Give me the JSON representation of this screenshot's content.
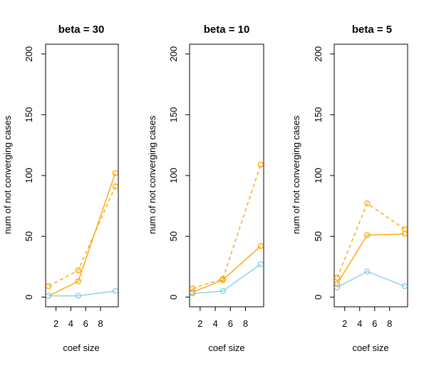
{
  "chart_data": [
    {
      "type": "line",
      "title": "beta = 30",
      "xlabel": "coef size",
      "ylabel": "num of not converging cases",
      "xlim": [
        0.6,
        10.4
      ],
      "ylim": [
        -8,
        208
      ],
      "xticks": [
        2,
        4,
        6,
        8
      ],
      "yticks": [
        0,
        50,
        100,
        150,
        200
      ],
      "x": [
        1,
        5,
        10
      ],
      "series": [
        {
          "name": "orange-solid",
          "color": "#FFA500",
          "dash": false,
          "values": [
            1,
            13,
            102
          ]
        },
        {
          "name": "orange-dashed",
          "color": "#FFA500",
          "dash": true,
          "values": [
            9,
            22,
            91
          ]
        },
        {
          "name": "skyblue-solid",
          "color": "#87CEEB",
          "dash": false,
          "values": [
            1,
            1,
            5
          ]
        }
      ]
    },
    {
      "type": "line",
      "title": "beta = 10",
      "xlabel": "coef size",
      "ylabel": "num of not converging cases",
      "xlim": [
        0.6,
        10.4
      ],
      "ylim": [
        -8,
        208
      ],
      "xticks": [
        2,
        4,
        6,
        8
      ],
      "yticks": [
        0,
        50,
        100,
        150,
        200
      ],
      "x": [
        1,
        5,
        10
      ],
      "series": [
        {
          "name": "orange-solid",
          "color": "#FFA500",
          "dash": false,
          "values": [
            4,
            14,
            42
          ]
        },
        {
          "name": "orange-dashed",
          "color": "#FFA500",
          "dash": true,
          "values": [
            7,
            15,
            109
          ]
        },
        {
          "name": "skyblue-solid",
          "color": "#87CEEB",
          "dash": false,
          "values": [
            3,
            5,
            27
          ]
        }
      ]
    },
    {
      "type": "line",
      "title": "beta = 5",
      "xlabel": "coef size",
      "ylabel": "num of not converging cases",
      "xlim": [
        0.6,
        10.4
      ],
      "ylim": [
        -8,
        208
      ],
      "xticks": [
        2,
        4,
        6,
        8
      ],
      "yticks": [
        0,
        50,
        100,
        150,
        200
      ],
      "x": [
        1,
        5,
        10
      ],
      "series": [
        {
          "name": "orange-solid",
          "color": "#FFA500",
          "dash": false,
          "values": [
            11,
            51,
            52
          ]
        },
        {
          "name": "orange-dashed",
          "color": "#FFA500",
          "dash": true,
          "values": [
            16,
            77,
            56
          ]
        },
        {
          "name": "skyblue-solid",
          "color": "#87CEEB",
          "dash": false,
          "values": [
            8,
            21,
            9
          ]
        }
      ]
    }
  ]
}
